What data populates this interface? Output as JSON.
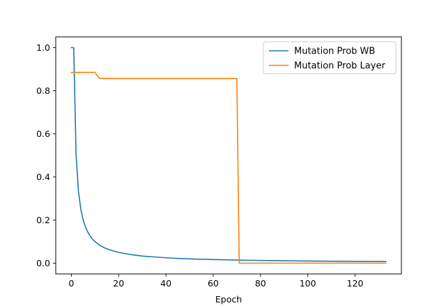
{
  "chart_data": {
    "type": "line",
    "title": "",
    "xlabel": "Epoch",
    "ylabel": "",
    "xlim": [
      -6.6,
      139.6
    ],
    "ylim": [
      -0.05,
      1.05
    ],
    "xticks": [
      0,
      20,
      40,
      60,
      80,
      100,
      120
    ],
    "yticks": [
      0.0,
      0.2,
      0.4,
      0.6,
      0.8,
      1.0
    ],
    "xtick_labels": [
      "0",
      "20",
      "40",
      "60",
      "80",
      "100",
      "120"
    ],
    "ytick_labels": [
      "0.0",
      "0.2",
      "0.4",
      "0.6",
      "0.8",
      "1.0"
    ],
    "grid": false,
    "legend_position": "top-right",
    "series": [
      {
        "name": "Mutation Prob WB",
        "color": "#1f77b4",
        "x": [
          0,
          1,
          2,
          3,
          4,
          5,
          6,
          7,
          8,
          9,
          10,
          12,
          14,
          16,
          18,
          20,
          25,
          30,
          35,
          40,
          45,
          50,
          55,
          60,
          65,
          70,
          75,
          80,
          85,
          90,
          95,
          100,
          105,
          110,
          115,
          120,
          125,
          130,
          133
        ],
        "y": [
          1.0,
          1.0,
          0.5,
          0.333,
          0.25,
          0.2,
          0.167,
          0.143,
          0.125,
          0.111,
          0.1,
          0.083,
          0.071,
          0.0625,
          0.056,
          0.05,
          0.04,
          0.033,
          0.029,
          0.025,
          0.022,
          0.02,
          0.018,
          0.0167,
          0.0154,
          0.0143,
          0.0133,
          0.0125,
          0.0118,
          0.0111,
          0.0105,
          0.01,
          0.0095,
          0.0091,
          0.0087,
          0.0083,
          0.008,
          0.0077,
          0.0075
        ]
      },
      {
        "name": "Mutation Prob Layer",
        "color": "#ff7f0e",
        "x": [
          0,
          10,
          11,
          12,
          70,
          71,
          133
        ],
        "y": [
          0.885,
          0.885,
          0.87,
          0.857,
          0.857,
          0.0,
          0.0
        ]
      }
    ]
  }
}
